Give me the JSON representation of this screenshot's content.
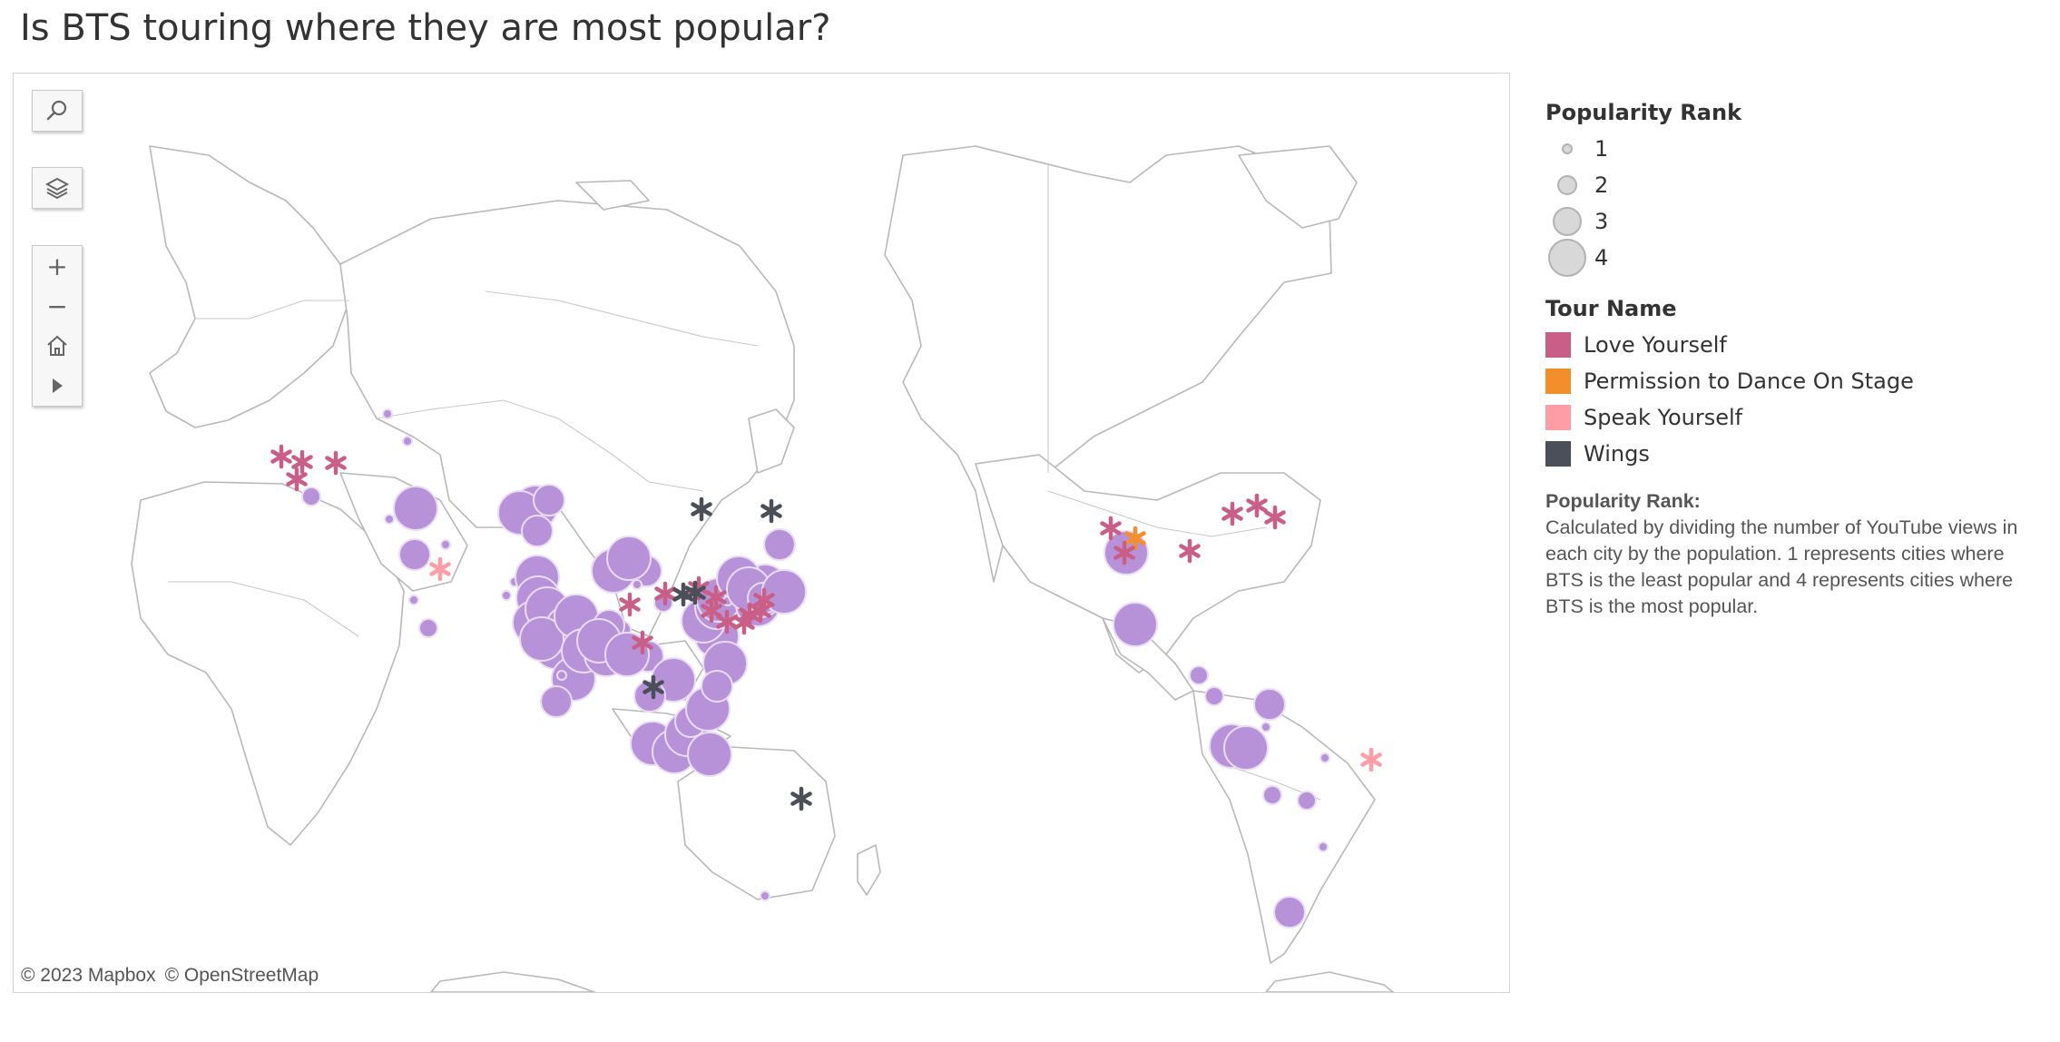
{
  "title": "Is BTS touring where they are most popular?",
  "map": {
    "credits": [
      "© 2023 Mapbox",
      "© OpenStreetMap"
    ],
    "controls": {
      "search_icon": "search-icon",
      "layers_icon": "layers-icon",
      "zoom_in_label": "+",
      "zoom_out_label": "−",
      "home_icon": "home-icon",
      "play_icon": "play-icon"
    },
    "circle_color": "#b892d9",
    "cities": [
      {
        "rank": 1
      },
      {
        "rank": 1
      },
      {
        "rank": 2
      },
      {
        "rank": 4
      },
      {
        "rank": 1
      },
      {
        "rank": 1
      },
      {
        "rank": 3
      },
      {
        "rank": 1
      },
      {
        "rank": 2
      },
      {
        "rank": 1
      },
      {
        "rank": 4
      },
      {
        "rank": 4
      },
      {
        "rank": 1
      },
      {
        "rank": 3
      },
      {
        "rank": 3
      },
      {
        "rank": 4
      },
      {
        "rank": 4
      },
      {
        "rank": 4
      },
      {
        "rank": 4
      },
      {
        "rank": 4
      },
      {
        "rank": 4
      },
      {
        "rank": 4
      },
      {
        "rank": 4
      },
      {
        "rank": 4
      },
      {
        "rank": 3
      },
      {
        "rank": 4
      },
      {
        "rank": 1
      },
      {
        "rank": 2
      },
      {
        "rank": 3
      },
      {
        "rank": 4
      },
      {
        "rank": 3
      },
      {
        "rank": 4
      },
      {
        "rank": 4
      },
      {
        "rank": 3
      },
      {
        "rank": 4
      },
      {
        "rank": 4
      },
      {
        "rank": 4
      },
      {
        "rank": 4
      },
      {
        "rank": 4
      },
      {
        "rank": 4
      },
      {
        "rank": 3
      },
      {
        "rank": 4
      },
      {
        "rank": 4
      },
      {
        "rank": 4
      },
      {
        "rank": 4
      },
      {
        "rank": 4
      },
      {
        "rank": 4
      },
      {
        "rank": 3
      },
      {
        "rank": 2
      },
      {
        "rank": 3
      },
      {
        "rank": 1
      },
      {
        "rank": 1
      },
      {
        "rank": 3
      },
      {
        "rank": 4
      },
      {
        "rank": 1
      },
      {
        "rank": 4
      },
      {
        "rank": 4
      },
      {
        "rank": 3
      },
      {
        "rank": 4
      },
      {
        "rank": 4
      },
      {
        "rank": 4
      },
      {
        "rank": 3
      },
      {
        "rank": 4
      },
      {
        "rank": 4
      },
      {
        "rank": 4
      },
      {
        "rank": 2
      },
      {
        "rank": 2
      },
      {
        "rank": 3
      },
      {
        "rank": 1
      },
      {
        "rank": 4
      },
      {
        "rank": 4
      },
      {
        "rank": 2
      },
      {
        "rank": 2
      },
      {
        "rank": 3
      },
      {
        "rank": 1
      },
      {
        "rank": 1
      }
    ],
    "concerts": [
      {
        "tour": "Love Yourself"
      },
      {
        "tour": "Love Yourself"
      },
      {
        "tour": "Love Yourself"
      },
      {
        "tour": "Love Yourself"
      },
      {
        "tour": "Speak Yourself"
      },
      {
        "tour": "Love Yourself"
      },
      {
        "tour": "Wings"
      },
      {
        "tour": "Love Yourself"
      },
      {
        "tour": "Wings"
      },
      {
        "tour": "Love Yourself"
      },
      {
        "tour": "Love Yourself"
      },
      {
        "tour": "Love Yourself"
      },
      {
        "tour": "Love Yourself"
      },
      {
        "tour": "Love Yourself"
      },
      {
        "tour": "Love Yourself"
      },
      {
        "tour": "Love Yourself"
      },
      {
        "tour": "Wings"
      },
      {
        "tour": "Love Yourself"
      },
      {
        "tour": "Love Yourself"
      },
      {
        "tour": "Wings"
      },
      {
        "tour": "Wings"
      },
      {
        "tour": "Love Yourself"
      },
      {
        "tour": "Permission to Dance On Stage"
      },
      {
        "tour": "Love Yourself"
      },
      {
        "tour": "Love Yourself"
      },
      {
        "tour": "Love Yourself"
      },
      {
        "tour": "Love Yourself"
      },
      {
        "tour": "Love Yourself"
      },
      {
        "tour": "Speak Yourself"
      },
      {
        "tour": "Wings"
      }
    ]
  },
  "legend": {
    "size_title": "Popularity Rank",
    "sizes": [
      {
        "label": "1"
      },
      {
        "label": "2"
      },
      {
        "label": "3"
      },
      {
        "label": "4"
      }
    ],
    "color_title": "Tour Name",
    "tours": [
      {
        "label": "Love Yourself",
        "color": "#c95f87"
      },
      {
        "label": "Permission to Dance On Stage",
        "color": "#f28e2b"
      },
      {
        "label": "Speak Yourself",
        "color": "#ff9da7"
      },
      {
        "label": "Wings",
        "color": "#4a4f59"
      }
    ],
    "note_title": "Popularity Rank:",
    "note_body": "Calculated by dividing the number of YouTube views in each city by the population. 1 represents cities where BTS is the least popular and 4 represents cities where BTS is the most popular."
  }
}
